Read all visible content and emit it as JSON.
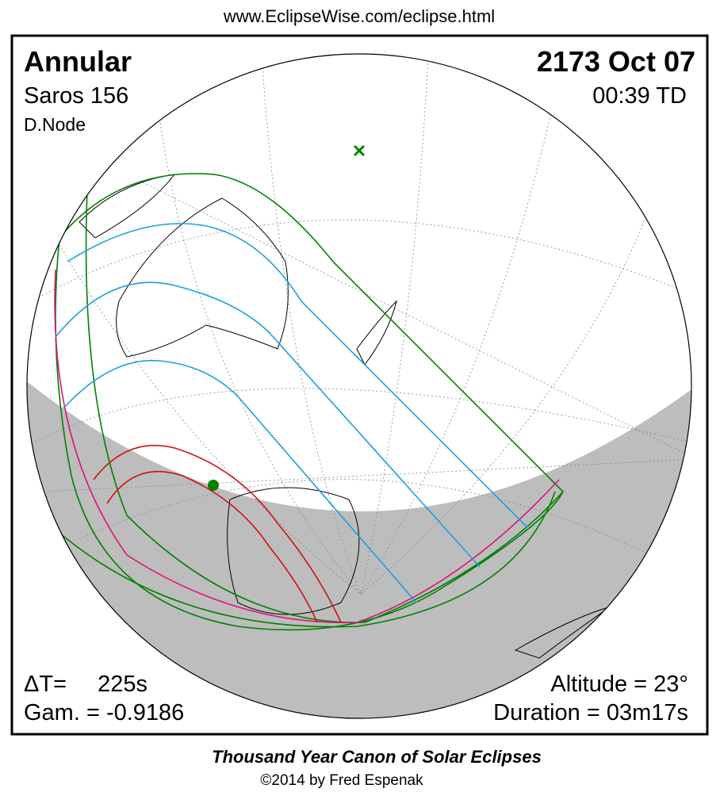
{
  "header": {
    "url": "www.EclipseWise.com/eclipse.html"
  },
  "panel": {
    "eclipse_type": "Annular",
    "saros": "Saros 156",
    "node": "D.Node",
    "date": "2173 Oct 07",
    "time": "00:39 TD",
    "delta_t_label": "ΔT=",
    "delta_t_value": "225s",
    "gamma": "Gam. = -0.9186",
    "altitude": "Altitude = 23°",
    "duration": "Duration = 03m17s"
  },
  "footer": {
    "title": "Thousand Year Canon of Solar Eclipses",
    "credit": "©2014 by Fred Espenak"
  }
}
